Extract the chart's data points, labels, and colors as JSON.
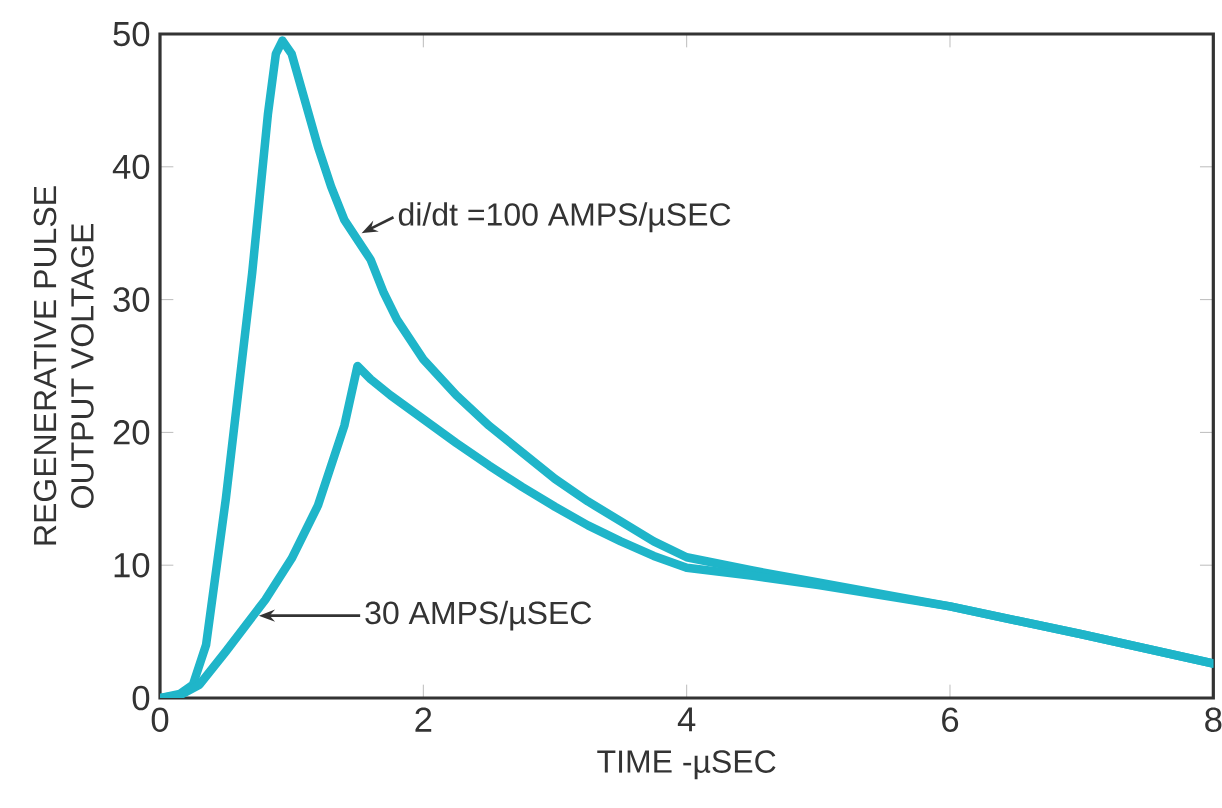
{
  "chart_data": {
    "type": "line",
    "xlabel": "TIME -µSEC",
    "ylabel": "REGENERATIVE PULSE\nOUTPUT VOLTAGE",
    "xlim": [
      0,
      8
    ],
    "ylim": [
      0,
      50
    ],
    "xticks": [
      0,
      2,
      4,
      6,
      8
    ],
    "yticks": [
      0,
      10,
      20,
      30,
      40,
      50
    ],
    "marker": "none",
    "line_style": "solid",
    "series": [
      {
        "color": "#1fb5c9",
        "x": [
          0,
          0.15,
          0.25,
          0.35,
          0.5,
          0.7,
          0.82,
          0.88,
          0.93,
          1.0,
          1.1,
          1.2,
          1.3,
          1.4,
          1.5,
          1.6,
          1.7,
          1.8,
          2.0,
          2.25,
          2.5,
          2.75,
          3.0,
          3.25,
          3.5,
          3.75,
          4.0,
          4.5,
          5.0,
          5.5,
          6.0,
          7.0,
          8.0
        ],
        "values": [
          0,
          0.3,
          1,
          4,
          15,
          32,
          44,
          48.5,
          49.5,
          48.5,
          45,
          41.5,
          38.5,
          36,
          34.5,
          33,
          30.5,
          28.5,
          25.5,
          22.8,
          20.5,
          18.5,
          16.5,
          14.8,
          13.3,
          11.8,
          10.6,
          9.6,
          8.7,
          7.8,
          6.9,
          4.8,
          2.6
        ]
      },
      {
        "color": "#1fb5c9",
        "x": [
          0,
          0.15,
          0.3,
          0.5,
          0.8,
          1.0,
          1.2,
          1.4,
          1.5,
          1.6,
          1.75,
          2.0,
          2.25,
          2.5,
          2.75,
          3.0,
          3.25,
          3.5,
          3.75,
          4.0,
          4.5,
          5.0,
          5.5,
          6.0,
          7.0,
          8.0
        ],
        "values": [
          0,
          0.2,
          1,
          3.5,
          7.4,
          10.5,
          14.5,
          20.5,
          25,
          24,
          22.8,
          21,
          19.2,
          17.5,
          15.9,
          14.4,
          13,
          11.8,
          10.7,
          9.8,
          9.2,
          8.5,
          7.7,
          6.9,
          4.8,
          2.6
        ]
      }
    ],
    "annotations": [
      {
        "text": "di/dt =100 AMPS/µSEC",
        "x": 1.49,
        "y": 35
      },
      {
        "text": "30 AMPS/µSEC",
        "x": 0.71,
        "y": 6.2
      }
    ]
  }
}
